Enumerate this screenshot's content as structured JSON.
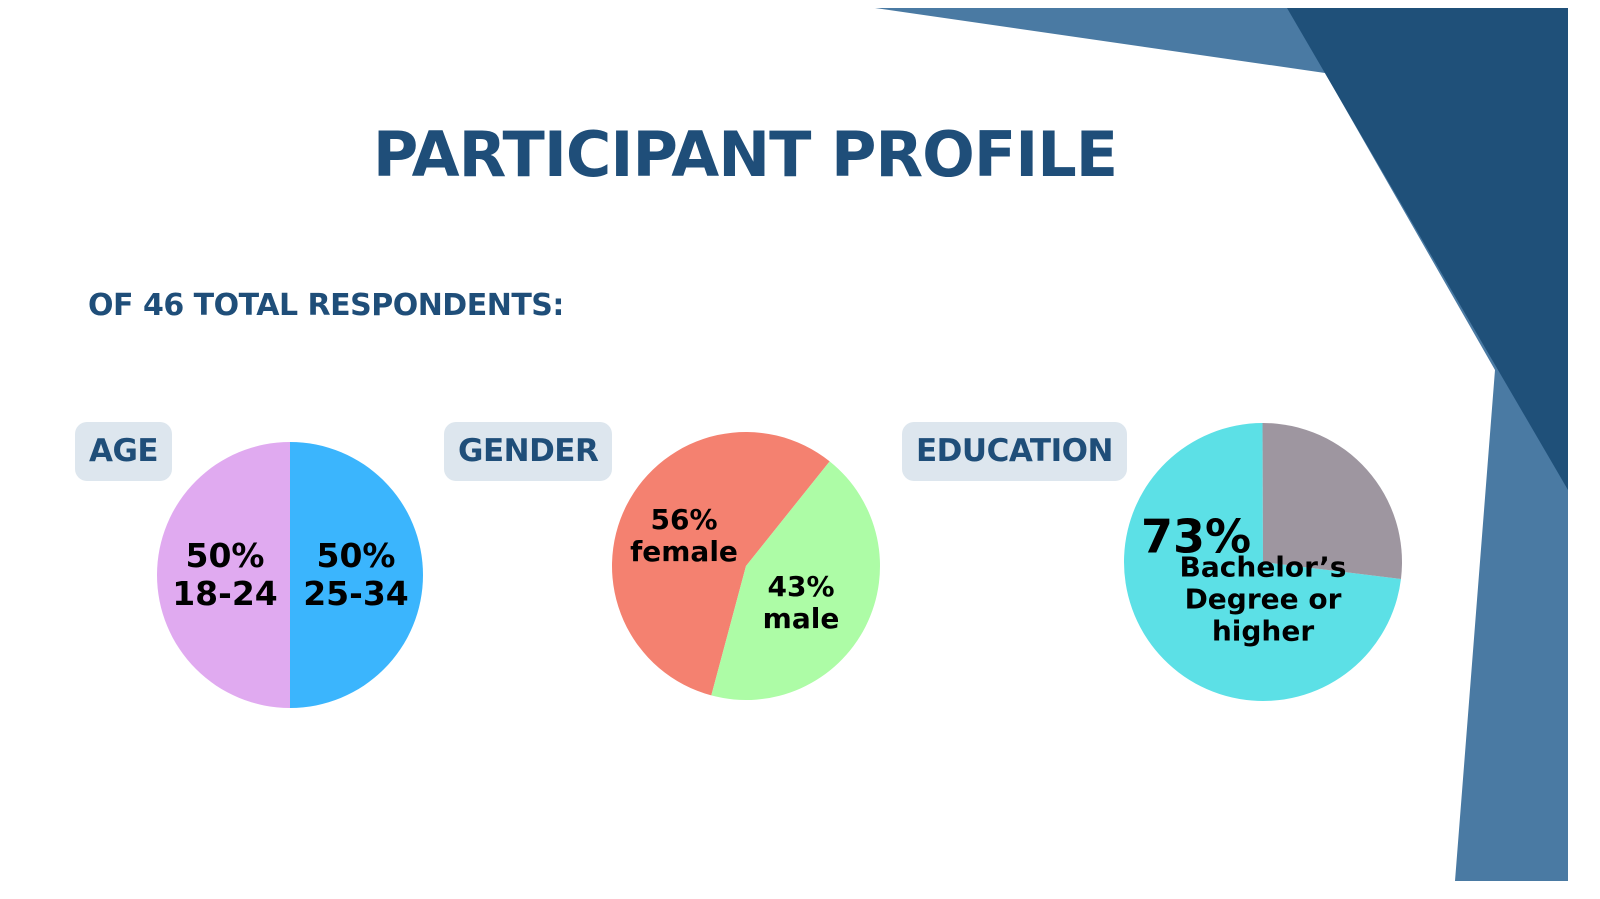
{
  "title": "PARTICIPANT PROFILE",
  "subtitle": "OF 46 TOTAL RESPONDENTS:",
  "chart_data": [
    {
      "type": "pie",
      "title": "AGE",
      "categories": [
        "18-24",
        "25-34"
      ],
      "values": [
        50,
        50
      ],
      "value_labels": [
        "50%",
        "50%"
      ],
      "colors": [
        "#e0aaf0",
        "#3bb5fd"
      ]
    },
    {
      "type": "pie",
      "title": "GENDER",
      "categories": [
        "female",
        "male"
      ],
      "values": [
        56,
        43
      ],
      "value_labels": [
        "56%",
        "43%"
      ],
      "colors": [
        "#f48170",
        "#adfca6"
      ]
    },
    {
      "type": "pie",
      "title": "EDUCATION",
      "categories": [
        "Bachelor’s Degree or higher",
        null
      ],
      "values": [
        73,
        27
      ],
      "value_labels": [
        "73%",
        null
      ],
      "colors": [
        "#5ce0e6",
        "#9e96a0"
      ]
    }
  ]
}
